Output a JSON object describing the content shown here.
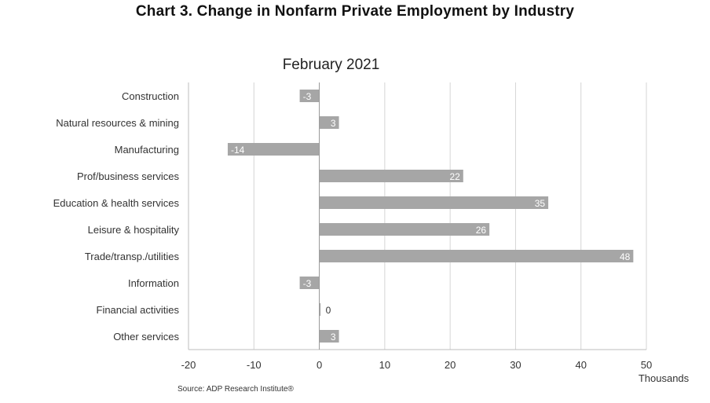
{
  "header": {
    "title": "Chart 3. Change in Nonfarm Private Employment by Industry"
  },
  "footer": {
    "source": "Source: ADP Research Institute®"
  },
  "chart_data": {
    "type": "bar",
    "orientation": "horizontal",
    "subtitle": "February 2021",
    "categories": [
      "Construction",
      "Natural resources & mining",
      "Manufacturing",
      "Prof/business services",
      "Education & health services",
      "Leisure & hospitality",
      "Trade/transp./utilities",
      "Information",
      "Financial activities",
      "Other services"
    ],
    "values": [
      -3,
      3,
      -14,
      22,
      35,
      26,
      48,
      -3,
      0,
      3
    ],
    "data_labels": [
      "-3",
      "3",
      "-14",
      "22",
      "35",
      "26",
      "48",
      "-3",
      "0",
      "3"
    ],
    "xlim": [
      -20,
      50
    ],
    "xticks": [
      -20,
      -10,
      0,
      10,
      20,
      30,
      40,
      50
    ],
    "xlabel": "Thousands",
    "grid": "vertical",
    "bar_color": "#a6a6a6"
  }
}
